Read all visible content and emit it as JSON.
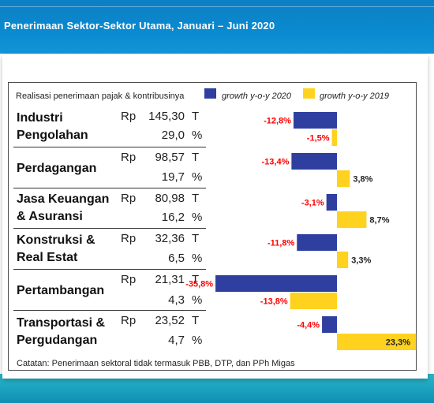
{
  "page": {
    "title": "Penerimaan Sektor-Sektor Utama, Januari – Juni 2020"
  },
  "header": {
    "label": "Realisasi penerimaan pajak & kontribusinya",
    "legend_2020": "growth y-o-y 2020",
    "legend_2019": "growth y-o-y 2019"
  },
  "colors": {
    "series_2020": "#2e3fa0",
    "series_2019": "#ffd21f",
    "negative_label": "#ff0000",
    "positive_label": "#222222"
  },
  "sectors": [
    {
      "name_line1": "Industri",
      "name_line2": "Pengolahan",
      "rp": "Rp",
      "revenue": "145,30",
      "unit": "T",
      "share": "29,0",
      "pct": "%"
    },
    {
      "name_line1": "Perdagangan",
      "name_line2": "",
      "rp": "Rp",
      "revenue": "98,57",
      "unit": "T",
      "share": "19,7",
      "pct": "%"
    },
    {
      "name_line1": "Jasa Keuangan",
      "name_line2": "& Asuransi",
      "rp": "Rp",
      "revenue": "80,98",
      "unit": "T",
      "share": "16,2",
      "pct": "%"
    },
    {
      "name_line1": "Konstruksi &",
      "name_line2": "Real Estat",
      "rp": "Rp",
      "revenue": "32,36",
      "unit": "T",
      "share": "6,5",
      "pct": "%"
    },
    {
      "name_line1": "Pertambangan",
      "name_line2": "",
      "rp": "Rp",
      "revenue": "21,31",
      "unit": "T",
      "share": "4,3",
      "pct": "%"
    },
    {
      "name_line1": "Transportasi &",
      "name_line2": "Pergudangan",
      "rp": "Rp",
      "revenue": "23,52",
      "unit": "T",
      "share": "4,7",
      "pct": "%"
    }
  ],
  "chart_data": {
    "type": "bar",
    "orientation": "horizontal",
    "categories": [
      "Industri Pengolahan",
      "Perdagangan",
      "Jasa Keuangan & Asuransi",
      "Konstruksi & Real Estat",
      "Pertambangan",
      "Transportasi & Pergudangan"
    ],
    "series": [
      {
        "name": "growth y-o-y 2020",
        "values": [
          -12.8,
          -13.4,
          -3.1,
          -11.8,
          -35.8,
          -4.4
        ],
        "labels": [
          "-12,8%",
          "-13,4%",
          "-3,1%",
          "-11,8%",
          "-35,8%",
          "-4,4%"
        ]
      },
      {
        "name": "growth y-o-y 2019",
        "values": [
          -1.5,
          3.8,
          8.7,
          3.3,
          -13.8,
          23.3
        ],
        "labels": [
          "-1,5%",
          "3,8%",
          "8,7%",
          "3,3%",
          "-13,8%",
          "23,3%"
        ]
      }
    ],
    "legend": "top",
    "grid": false
  },
  "note": "Catatan: Penerimaan sektoral tidak termasuk PBB, DTP, dan PPh Migas"
}
